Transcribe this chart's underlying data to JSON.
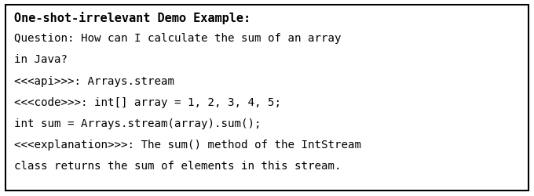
{
  "title": "One-shot-irrelevant Demo Example:",
  "lines": [
    "Question: How can I calculate the sum of an array",
    "in Java?",
    "<<<api>>>: Arrays.stream",
    "<<<code>>>: int[] array = 1, 2, 3, 4, 5;",
    "int sum = Arrays.stream(array).sum();",
    "<<<explanation>>>: The sum() method of the IntStream",
    "class returns the sum of elements in this stream."
  ],
  "bg_color": "#ffffff",
  "border_color": "#000000",
  "text_color": "#000000",
  "font_family": "DejaVu Sans Mono",
  "title_fontsize": 11.0,
  "body_fontsize": 10.2,
  "fig_width": 6.8,
  "fig_height": 2.51,
  "dpi": 100
}
